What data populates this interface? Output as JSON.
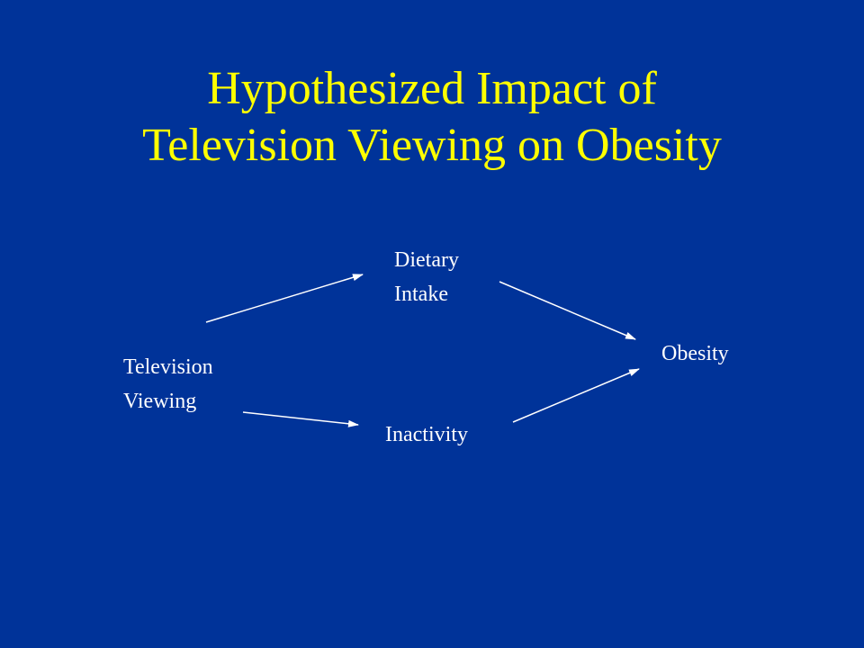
{
  "title": {
    "lines": [
      "Hypothesized Impact of",
      "Television Viewing on Obesity"
    ]
  },
  "nodes": [
    {
      "lines": [
        "Television",
        "Viewing"
      ]
    },
    {
      "lines": [
        "Dietary",
        "Intake"
      ]
    },
    {
      "lines": [
        "Inactivity"
      ]
    },
    {
      "lines": [
        "Obesity"
      ]
    }
  ]
}
